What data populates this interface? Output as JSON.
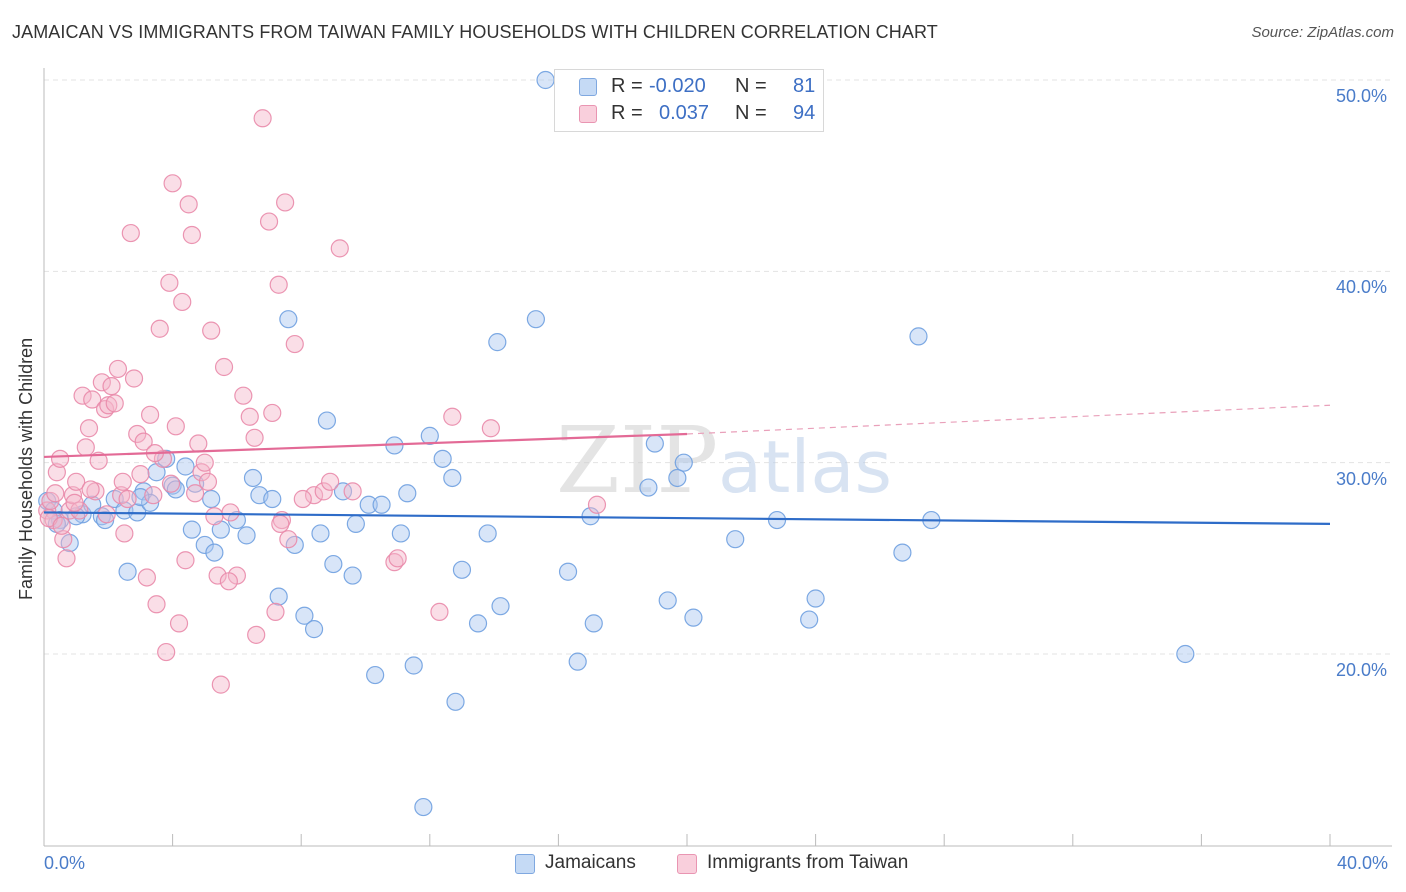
{
  "title": "JAMAICAN VS IMMIGRANTS FROM TAIWAN FAMILY HOUSEHOLDS WITH CHILDREN CORRELATION CHART",
  "source": "Source: ZipAtlas.com",
  "watermark": {
    "zip": "ZIP",
    "atlas": "atlas"
  },
  "legend": {
    "r_label": "R =",
    "n_label": "N =",
    "rows": [
      {
        "r": "-0.020",
        "n": "81",
        "color": "#a8c6ef"
      },
      {
        "r": "0.037",
        "n": "94",
        "color": "#f4b6ca"
      }
    ]
  },
  "bottom_legend": {
    "series1": "Jamaicans",
    "series2": "Immigrants from Taiwan"
  },
  "chart_data": {
    "type": "scatter",
    "title": "JAMAICAN VS IMMIGRANTS FROM TAIWAN FAMILY HOUSEHOLDS WITH CHILDREN CORRELATION CHART",
    "xlabel": "",
    "ylabel": "Family Households with Children",
    "xlim": [
      0,
      40
    ],
    "ylim": [
      10,
      52
    ],
    "x_tick_labels": [
      "0.0%",
      "40.0%"
    ],
    "y_ticks": [
      20,
      30,
      40,
      50
    ],
    "y_tick_labels": [
      "20.0%",
      "30.0%",
      "40.0%",
      "50.0%"
    ],
    "grid": true,
    "series": [
      {
        "name": "Jamaicans",
        "color": "#6fa0e0",
        "fill": "#a8c6ef",
        "trend": {
          "x0": 0,
          "y0": 27.4,
          "x1": 40,
          "y1": 26.8,
          "color": "#2e6cc8"
        },
        "points": [
          [
            0.1,
            28.0
          ],
          [
            0.3,
            27.5
          ],
          [
            0.5,
            27.0
          ],
          [
            0.8,
            25.8
          ],
          [
            1.2,
            27.3
          ],
          [
            1.5,
            27.8
          ],
          [
            1.8,
            27.2
          ],
          [
            2.2,
            28.1
          ],
          [
            2.5,
            27.5
          ],
          [
            2.6,
            24.3
          ],
          [
            2.9,
            27.4
          ],
          [
            3.1,
            28.5
          ],
          [
            3.3,
            27.9
          ],
          [
            3.5,
            29.5
          ],
          [
            3.8,
            30.2
          ],
          [
            4.0,
            28.8
          ],
          [
            4.4,
            29.8
          ],
          [
            4.6,
            26.5
          ],
          [
            4.7,
            28.9
          ],
          [
            5.0,
            25.7
          ],
          [
            5.2,
            28.1
          ],
          [
            5.3,
            25.3
          ],
          [
            5.5,
            26.5
          ],
          [
            6.0,
            27.0
          ],
          [
            6.3,
            26.2
          ],
          [
            6.5,
            29.2
          ],
          [
            6.7,
            28.3
          ],
          [
            7.1,
            28.1
          ],
          [
            7.3,
            23.0
          ],
          [
            7.6,
            37.5
          ],
          [
            7.8,
            25.7
          ],
          [
            8.1,
            22.0
          ],
          [
            8.4,
            21.3
          ],
          [
            8.6,
            26.3
          ],
          [
            8.8,
            32.2
          ],
          [
            9.0,
            24.7
          ],
          [
            9.3,
            28.5
          ],
          [
            9.6,
            24.1
          ],
          [
            9.7,
            26.8
          ],
          [
            10.1,
            27.8
          ],
          [
            10.3,
            18.9
          ],
          [
            10.5,
            27.8
          ],
          [
            10.9,
            30.9
          ],
          [
            11.1,
            26.3
          ],
          [
            11.3,
            28.4
          ],
          [
            11.5,
            19.4
          ],
          [
            11.8,
            12.0
          ],
          [
            12.0,
            31.4
          ],
          [
            12.4,
            30.2
          ],
          [
            12.7,
            29.2
          ],
          [
            12.8,
            17.5
          ],
          [
            13.0,
            24.4
          ],
          [
            13.5,
            21.6
          ],
          [
            13.8,
            26.3
          ],
          [
            14.1,
            36.3
          ],
          [
            14.2,
            22.5
          ],
          [
            15.3,
            37.5
          ],
          [
            15.6,
            50.0
          ],
          [
            16.3,
            24.3
          ],
          [
            16.6,
            19.6
          ],
          [
            17.0,
            27.2
          ],
          [
            17.1,
            21.6
          ],
          [
            18.8,
            28.7
          ],
          [
            19.0,
            31.0
          ],
          [
            19.4,
            22.8
          ],
          [
            19.7,
            29.2
          ],
          [
            19.9,
            30.0
          ],
          [
            20.2,
            21.9
          ],
          [
            21.5,
            26.0
          ],
          [
            22.8,
            27.0
          ],
          [
            23.8,
            21.8
          ],
          [
            24.0,
            22.9
          ],
          [
            26.7,
            25.3
          ],
          [
            27.2,
            36.6
          ],
          [
            27.6,
            27.0
          ],
          [
            35.5,
            20.0
          ],
          [
            0.4,
            26.8
          ],
          [
            1.0,
            27.2
          ],
          [
            1.9,
            27.0
          ],
          [
            3.0,
            28.2
          ],
          [
            4.1,
            28.6
          ]
        ]
      },
      {
        "name": "Immigrants from Taiwan",
        "color": "#e98aaa",
        "fill": "#f4b6ca",
        "trend": {
          "x0": 0,
          "y0": 30.3,
          "x1": 20,
          "y1": 31.5,
          "color": "#e36a96"
        },
        "trend_ext": {
          "x0": 20,
          "y0": 31.5,
          "x1": 40,
          "y1": 33.0,
          "color": "#e9a0ba"
        },
        "points": [
          [
            0.1,
            27.5
          ],
          [
            0.2,
            28.0
          ],
          [
            0.3,
            27.0
          ],
          [
            0.4,
            29.5
          ],
          [
            0.5,
            30.2
          ],
          [
            0.6,
            26.0
          ],
          [
            0.7,
            25.0
          ],
          [
            0.8,
            27.5
          ],
          [
            0.9,
            28.3
          ],
          [
            1.0,
            29.0
          ],
          [
            1.1,
            27.5
          ],
          [
            1.2,
            33.5
          ],
          [
            1.3,
            30.8
          ],
          [
            1.4,
            31.8
          ],
          [
            1.5,
            33.3
          ],
          [
            1.6,
            28.5
          ],
          [
            1.7,
            30.1
          ],
          [
            1.8,
            34.2
          ],
          [
            1.9,
            32.8
          ],
          [
            2.0,
            33.0
          ],
          [
            2.1,
            34.0
          ],
          [
            2.2,
            33.1
          ],
          [
            2.3,
            34.9
          ],
          [
            2.4,
            28.3
          ],
          [
            2.5,
            26.3
          ],
          [
            2.6,
            28.1
          ],
          [
            2.7,
            42.0
          ],
          [
            2.8,
            34.4
          ],
          [
            2.9,
            31.5
          ],
          [
            3.0,
            29.4
          ],
          [
            3.1,
            31.1
          ],
          [
            3.2,
            24.0
          ],
          [
            3.3,
            32.5
          ],
          [
            3.4,
            28.3
          ],
          [
            3.5,
            22.6
          ],
          [
            3.6,
            37.0
          ],
          [
            3.7,
            30.2
          ],
          [
            3.8,
            20.1
          ],
          [
            3.9,
            39.4
          ],
          [
            4.0,
            44.6
          ],
          [
            4.1,
            31.9
          ],
          [
            4.2,
            21.6
          ],
          [
            4.3,
            38.4
          ],
          [
            4.4,
            24.9
          ],
          [
            4.5,
            43.5
          ],
          [
            4.6,
            41.9
          ],
          [
            4.7,
            28.4
          ],
          [
            4.8,
            31.0
          ],
          [
            4.9,
            29.5
          ],
          [
            5.0,
            30.0
          ],
          [
            5.1,
            29.0
          ],
          [
            5.2,
            36.9
          ],
          [
            5.3,
            27.2
          ],
          [
            5.4,
            24.1
          ],
          [
            5.5,
            18.4
          ],
          [
            5.6,
            35.0
          ],
          [
            5.8,
            27.4
          ],
          [
            6.0,
            24.1
          ],
          [
            6.2,
            33.5
          ],
          [
            6.4,
            32.4
          ],
          [
            6.6,
            21.0
          ],
          [
            6.8,
            48.0
          ],
          [
            7.0,
            42.6
          ],
          [
            7.1,
            32.6
          ],
          [
            7.2,
            22.2
          ],
          [
            7.3,
            39.3
          ],
          [
            7.4,
            27.0
          ],
          [
            7.5,
            43.6
          ],
          [
            7.6,
            26.0
          ],
          [
            7.8,
            36.2
          ],
          [
            8.4,
            28.3
          ],
          [
            8.7,
            28.5
          ],
          [
            8.9,
            29.0
          ],
          [
            9.2,
            41.2
          ],
          [
            9.6,
            28.5
          ],
          [
            10.9,
            24.8
          ],
          [
            11.0,
            25.0
          ],
          [
            12.3,
            22.2
          ],
          [
            12.7,
            32.4
          ],
          [
            13.9,
            31.8
          ],
          [
            17.2,
            27.8
          ],
          [
            0.15,
            27.1
          ],
          [
            0.35,
            28.4
          ],
          [
            0.55,
            26.7
          ],
          [
            0.95,
            27.9
          ],
          [
            1.45,
            28.6
          ],
          [
            1.95,
            27.3
          ],
          [
            2.45,
            29.0
          ],
          [
            3.45,
            30.5
          ],
          [
            3.95,
            28.9
          ],
          [
            5.75,
            23.8
          ],
          [
            6.55,
            31.3
          ],
          [
            7.35,
            26.8
          ],
          [
            8.05,
            28.1
          ]
        ]
      }
    ]
  }
}
